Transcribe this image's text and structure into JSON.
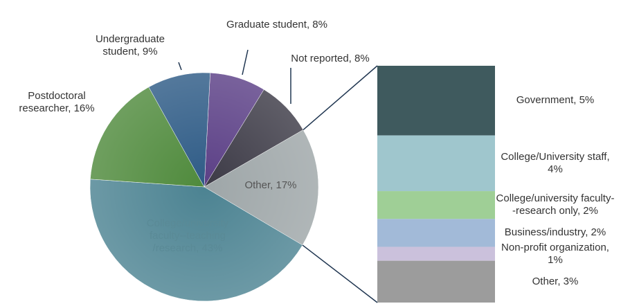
{
  "chart_data": {
    "type": "pie-of-bar",
    "slices": {
      "labels": [
        "Graduate student, 8%",
        "Not reported, 8%",
        "Other, 17%",
        "College/university faculty--teaching /research, 43%",
        "Postdoctoral researcher, 16%",
        "Undergraduate student, 9%"
      ],
      "values": [
        8,
        8,
        17,
        43,
        16,
        9
      ],
      "colors": [
        "#5b3f86",
        "#3c3a46",
        "#9ea6a8",
        "#4c8392",
        "#4f8a3c",
        "#2e5b86"
      ]
    },
    "breakdown": {
      "labels": [
        "Government, 5%",
        "College/University staff, 4%",
        "College/university faculty--research only, 2%",
        "Business/industry, 2%",
        "Non-profit organization, 1%",
        "Other, 3%"
      ],
      "values": [
        5,
        4,
        2,
        2,
        1,
        3
      ],
      "colors": [
        "#3f5a5e",
        "#9fc6cd",
        "#9fcf96",
        "#a2bad8",
        "#cbc1dc",
        "#9c9c9c"
      ]
    }
  }
}
